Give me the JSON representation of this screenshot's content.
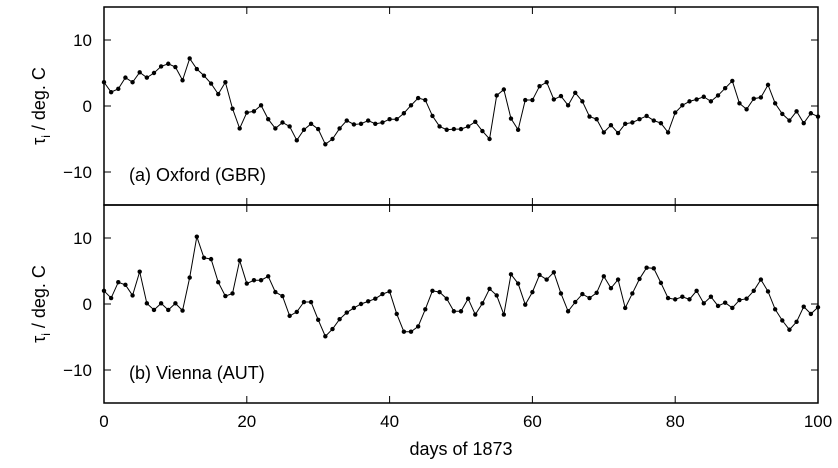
{
  "chart_data": {
    "type": "line",
    "xlabel": "days of 1873",
    "xlim": [
      0,
      100
    ],
    "xticks": [
      0,
      20,
      40,
      60,
      80,
      100
    ],
    "grid": false,
    "panels": [
      {
        "label": "(a) Oxford (GBR)",
        "ylabel_main": "τ",
        "ylabel_sub": "i",
        "ylabel_rest": " / deg. C",
        "ylim": [
          -15,
          15
        ],
        "yticks": [
          -10,
          0,
          10
        ],
        "series": [
          {
            "x": [
              0,
              1,
              2,
              3,
              4,
              5,
              6,
              7,
              8,
              9,
              10,
              11,
              12,
              13,
              14,
              15,
              16,
              17,
              18,
              19,
              20,
              21,
              22,
              23,
              24,
              25,
              26,
              27,
              28,
              29,
              30,
              31,
              32,
              33,
              34,
              35,
              36,
              37,
              38,
              39,
              40,
              41,
              42,
              43,
              44,
              45,
              46,
              47,
              48,
              49,
              50,
              51,
              52,
              53,
              54,
              55,
              56,
              57,
              58,
              59,
              60,
              61,
              62,
              63,
              64,
              65,
              66,
              67,
              68,
              69,
              70,
              71,
              72,
              73,
              74,
              75,
              76,
              77,
              78,
              79,
              80,
              81,
              82,
              83,
              84,
              85,
              86,
              87,
              88,
              89,
              90,
              91,
              92,
              93,
              94,
              95,
              96,
              97,
              98,
              99,
              100
            ],
            "y": [
              3.6,
              2.1,
              2.6,
              4.3,
              3.6,
              5.1,
              4.3,
              5.0,
              6.0,
              6.4,
              5.9,
              3.9,
              7.2,
              5.6,
              4.6,
              3.4,
              1.8,
              3.6,
              -0.4,
              -3.4,
              -1.0,
              -0.8,
              0.1,
              -2.0,
              -3.4,
              -2.5,
              -3.1,
              -5.2,
              -3.6,
              -2.7,
              -3.5,
              -5.8,
              -5.0,
              -3.4,
              -2.2,
              -2.8,
              -2.7,
              -2.2,
              -2.7,
              -2.5,
              -2.0,
              -2.0,
              -1.1,
              0.1,
              1.2,
              0.9,
              -1.5,
              -3.1,
              -3.6,
              -3.5,
              -3.5,
              -3.1,
              -2.4,
              -3.8,
              -5.0,
              1.6,
              2.5,
              -1.9,
              -3.6,
              0.9,
              0.9,
              3.0,
              3.6,
              1.0,
              1.5,
              0.1,
              2.0,
              0.7,
              -1.6,
              -2.0,
              -4.0,
              -2.9,
              -4.1,
              -2.7,
              -2.5,
              -2.0,
              -1.5,
              -2.2,
              -2.6,
              -4.0,
              -1.0,
              0.1,
              0.7,
              1.0,
              1.4,
              0.7,
              1.6,
              2.7,
              3.8,
              0.4,
              -0.5,
              1.1,
              1.3,
              3.2,
              0.4,
              -1.2,
              -2.2,
              -0.8,
              -2.6,
              -1.1,
              -1.6
            ]
          }
        ]
      },
      {
        "label": "(b) Vienna (AUT)",
        "ylabel_main": "τ",
        "ylabel_sub": "i",
        "ylabel_rest": " / deg. C",
        "ylim": [
          -15,
          15
        ],
        "yticks": [
          -10,
          0,
          10
        ],
        "series": [
          {
            "x": [
              0,
              1,
              2,
              3,
              4,
              5,
              6,
              7,
              8,
              9,
              10,
              11,
              12,
              13,
              14,
              15,
              16,
              17,
              18,
              19,
              20,
              21,
              22,
              23,
              24,
              25,
              26,
              27,
              28,
              29,
              30,
              31,
              32,
              33,
              34,
              35,
              36,
              37,
              38,
              39,
              40,
              41,
              42,
              43,
              44,
              45,
              46,
              47,
              48,
              49,
              50,
              51,
              52,
              53,
              54,
              55,
              56,
              57,
              58,
              59,
              60,
              61,
              62,
              63,
              64,
              65,
              66,
              67,
              68,
              69,
              70,
              71,
              72,
              73,
              74,
              75,
              76,
              77,
              78,
              79,
              80,
              81,
              82,
              83,
              84,
              85,
              86,
              87,
              88,
              89,
              90,
              91,
              92,
              93,
              94,
              95,
              96,
              97,
              98,
              99,
              100
            ],
            "y": [
              2.0,
              0.9,
              3.3,
              2.9,
              1.3,
              4.9,
              0.1,
              -0.9,
              0.1,
              -0.9,
              0.1,
              -1.0,
              4.0,
              10.2,
              7.0,
              6.8,
              3.3,
              1.2,
              1.6,
              6.6,
              3.1,
              3.6,
              3.6,
              4.2,
              1.8,
              1.2,
              -1.8,
              -1.2,
              0.3,
              0.3,
              -2.4,
              -4.9,
              -3.8,
              -2.3,
              -1.3,
              -0.6,
              0.0,
              0.4,
              0.8,
              1.5,
              1.9,
              -1.5,
              -4.2,
              -4.2,
              -3.4,
              -0.8,
              2.0,
              1.8,
              0.8,
              -1.1,
              -1.1,
              0.8,
              -1.6,
              0.1,
              2.3,
              1.3,
              -1.6,
              4.5,
              3.1,
              -0.1,
              1.8,
              4.4,
              3.7,
              4.8,
              1.6,
              -1.1,
              0.3,
              1.5,
              0.9,
              1.7,
              4.2,
              2.4,
              3.7,
              -0.6,
              1.6,
              3.8,
              5.5,
              5.4,
              3.2,
              0.9,
              0.7,
              1.1,
              0.7,
              2.0,
              0.1,
              1.1,
              -0.3,
              0.2,
              -0.6,
              0.6,
              0.8,
              2.0,
              3.7,
              1.9,
              -0.8,
              -2.5,
              -3.9,
              -2.7,
              -0.4,
              -1.5,
              -0.5
            ]
          }
        ]
      }
    ]
  }
}
